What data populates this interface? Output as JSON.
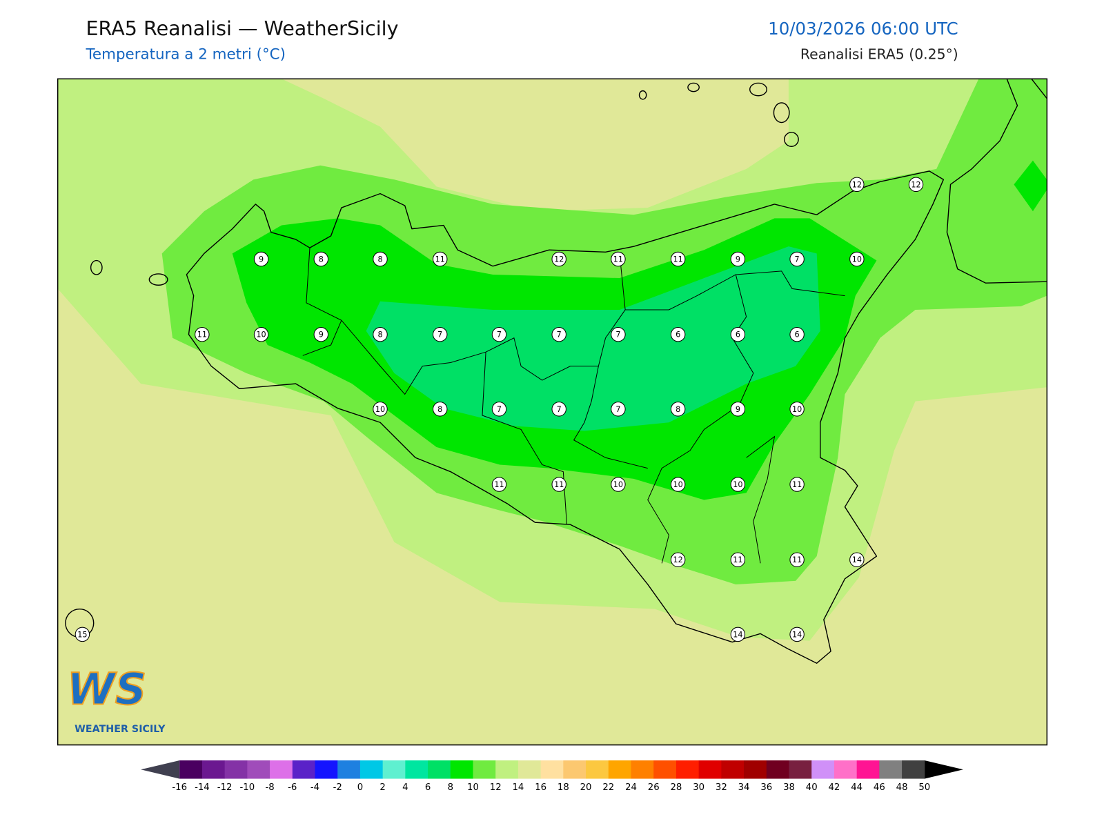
{
  "header": {
    "title": "ERA5 Reanalisi — WeatherSicily",
    "subtitle": "Temperatura a 2 metri (°C)",
    "datetime": "10/03/2026 06:00 UTC",
    "source": "Reanalisi ERA5 (0.25°)"
  },
  "stations": [
    12,
    12,
    9,
    8,
    8,
    11,
    12,
    11,
    11,
    9,
    7,
    10,
    11,
    10,
    9,
    8,
    7,
    7,
    7,
    7,
    6,
    6,
    6,
    10,
    8,
    7,
    7,
    7,
    8,
    9,
    10,
    11,
    11,
    10,
    10,
    10,
    11,
    12,
    11,
    11,
    14,
    15,
    14,
    14
  ],
  "colorbar": {
    "ticks": [
      -16,
      -14,
      -12,
      -10,
      -8,
      -6,
      -4,
      -2,
      0,
      2,
      4,
      6,
      8,
      10,
      12,
      14,
      16,
      18,
      20,
      22,
      24,
      26,
      28,
      30,
      32,
      34,
      36,
      38,
      40,
      42,
      44,
      46,
      48,
      50
    ],
    "colors": [
      "#4a0060",
      "#6b1890",
      "#8432a6",
      "#a04cba",
      "#dd70e8",
      "#5a22c8",
      "#1414ff",
      "#1e80e0",
      "#00c8e6",
      "#5ff0d0",
      "#00e6a0",
      "#00e065",
      "#00e600",
      "#70eb40",
      "#c0f080",
      "#e0e898",
      "#ffe0a0",
      "#fcc870",
      "#fcc840",
      "#ffa500",
      "#ff8000",
      "#ff5000",
      "#ff1e00",
      "#e00000",
      "#c00000",
      "#a00000",
      "#700020",
      "#782040",
      "#d090f8",
      "#ff70c8",
      "#ff1493",
      "#808080",
      "#404040"
    ],
    "under_color": "#404050",
    "over_color": "#000000"
  },
  "logo": {
    "mark": "WS",
    "text": "WEATHER SICILY"
  }
}
